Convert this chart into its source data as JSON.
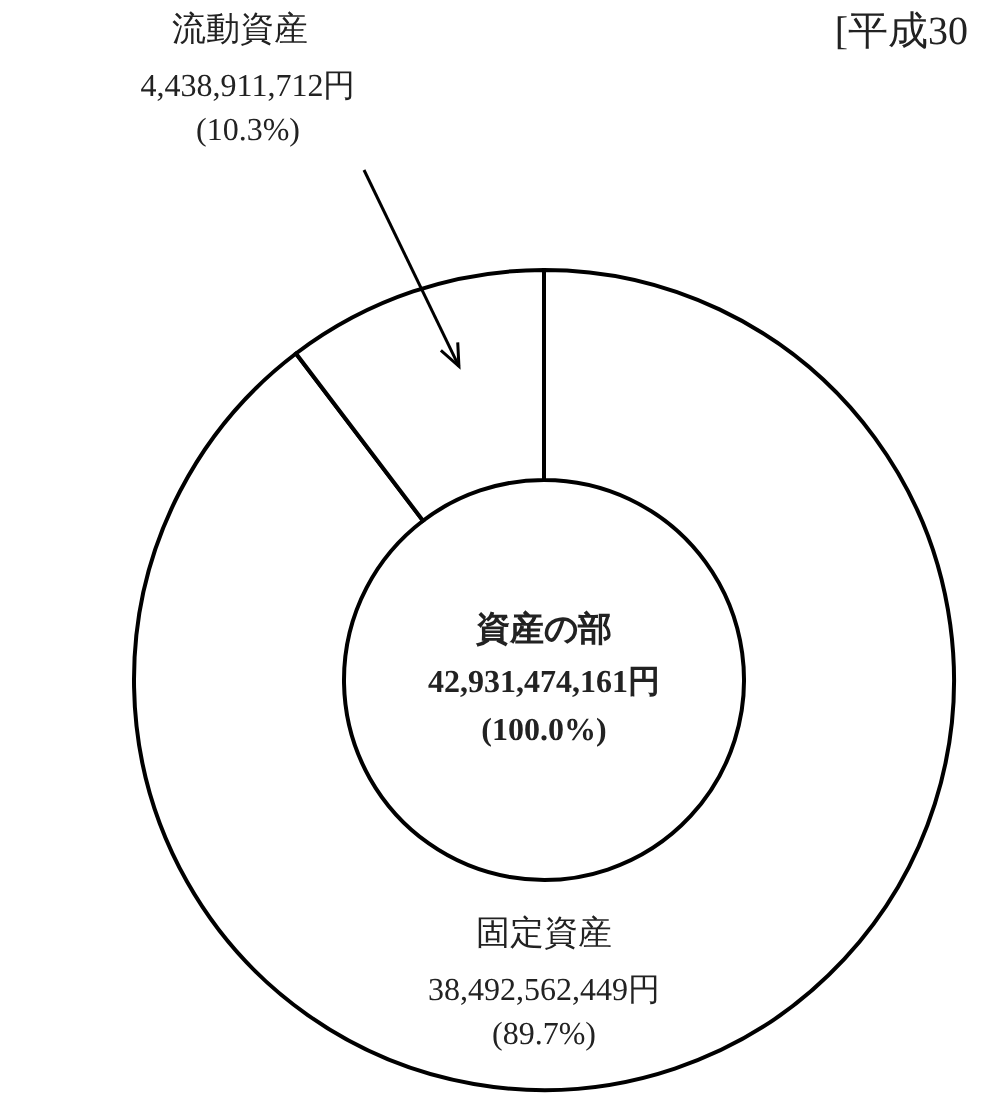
{
  "chart_data": {
    "type": "donut",
    "title": "資産の部",
    "subtitle": "42,931,474,161円\n(100.0%)",
    "categories": [
      "固定資産",
      "流動資産"
    ],
    "values": [
      38492562449,
      4438911712
    ],
    "value_labels": [
      "38,492,562,449円\n(89.7%)",
      "4,438,911,712円\n(10.3%)"
    ],
    "colors": [
      "#ffffff",
      "#ffffff"
    ],
    "annotations": [
      "[平成30"
    ],
    "legend": false
  }
}
